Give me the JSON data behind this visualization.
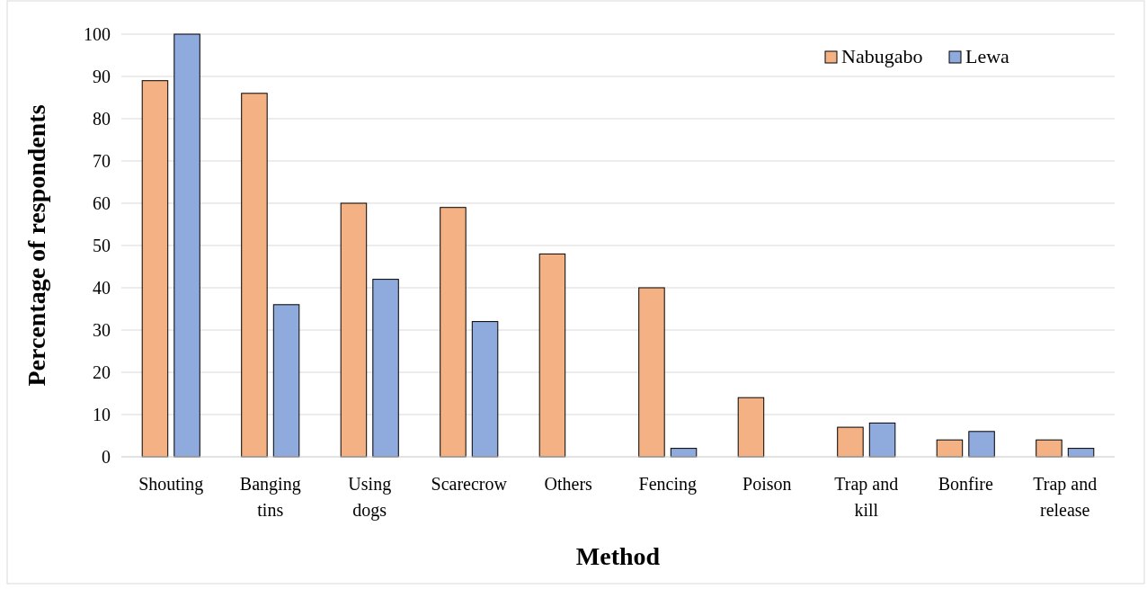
{
  "chart_data": {
    "type": "bar",
    "xlabel": "Method",
    "ylabel": "Percentage of respondents",
    "categories": [
      "Shouting",
      "Banging tins",
      "Using dogs",
      "Scarecrow",
      "Others",
      "Fencing",
      "Poison",
      "Trap and kill",
      "Bonfire",
      "Trap and release"
    ],
    "series": [
      {
        "name": "Nabugabo",
        "color": "#f4b183",
        "values": [
          89,
          86,
          60,
          59,
          48,
          40,
          14,
          7,
          4,
          4
        ]
      },
      {
        "name": "Lewa",
        "color": "#8faadc",
        "values": [
          100,
          36,
          42,
          32,
          null,
          2,
          null,
          8,
          6,
          2
        ]
      }
    ],
    "ylim": [
      0,
      100
    ],
    "yticks": [
      0,
      10,
      20,
      30,
      40,
      50,
      60,
      70,
      80,
      90,
      100
    ],
    "grid": "y",
    "legend": "top right"
  }
}
